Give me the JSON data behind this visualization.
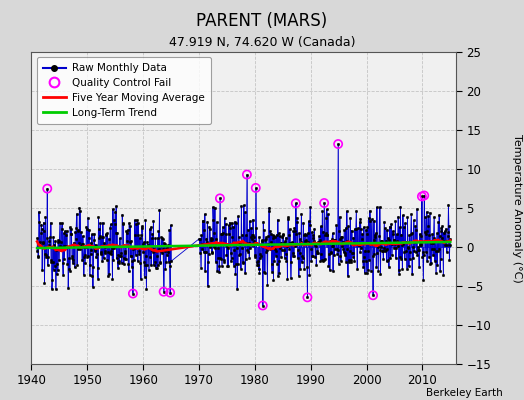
{
  "title": "PARENT (MARS)",
  "subtitle": "47.919 N, 74.620 W (Canada)",
  "ylabel": "Temperature Anomaly (°C)",
  "credit": "Berkeley Earth",
  "ylim": [
    -15,
    25
  ],
  "yticks": [
    -15,
    -10,
    -5,
    0,
    5,
    10,
    15,
    20,
    25
  ],
  "xlim": [
    1940,
    2016
  ],
  "xticks": [
    1940,
    1950,
    1960,
    1970,
    1980,
    1990,
    2000,
    2010
  ],
  "fig_bg": "#d8d8d8",
  "plot_bg": "#f0f0f0",
  "raw_color": "#0000cc",
  "ma_color": "#ff0000",
  "trend_color": "#00cc00",
  "qc_color": "#ff00ff",
  "grid_color": "#c0c0c0",
  "seed": 12345,
  "gap_start": 1965.0,
  "gap_end": 1970.0,
  "data_start": 1941.0,
  "data_end": 2015.0,
  "noise_std": 2.3,
  "qc_high_year": 1994.9,
  "qc_high_val": 13.2,
  "qc_low_year": 1981.4,
  "qc_low_val": -7.5,
  "qc_threshold": 5.5
}
